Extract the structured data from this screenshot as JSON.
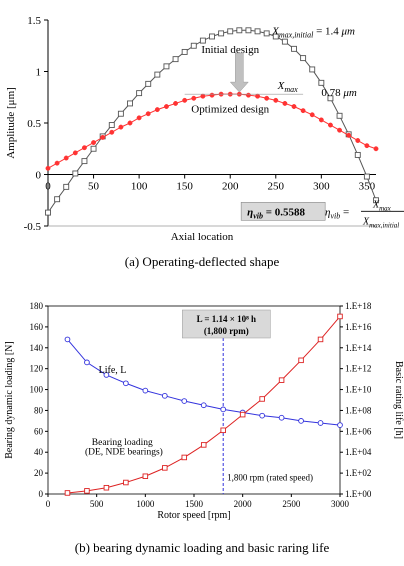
{
  "chart_data": [
    {
      "type": "line",
      "xlabel": "Axial location",
      "ylabel": "Amplitude [μm]",
      "xlim": [
        0,
        360
      ],
      "ylim": [
        -0.5,
        1.5
      ],
      "xticks": [
        "0",
        "50",
        "100",
        "150",
        "200",
        "250",
        "300",
        "350"
      ],
      "yticks": [
        "-0.5",
        "0",
        "0.5",
        "1",
        "1.5"
      ],
      "series": [
        {
          "name": "Initial design",
          "color": "#555555",
          "marker": "square",
          "x": [
            0,
            10,
            20,
            30,
            40,
            50,
            60,
            70,
            80,
            90,
            100,
            110,
            120,
            130,
            140,
            150,
            160,
            170,
            180,
            190,
            200,
            210,
            220,
            230,
            240,
            250,
            260,
            270,
            280,
            290,
            300,
            310,
            320,
            330,
            340,
            350,
            360
          ],
          "y": [
            -0.37,
            -0.24,
            -0.12,
            0.01,
            0.13,
            0.25,
            0.37,
            0.48,
            0.59,
            0.69,
            0.79,
            0.88,
            0.97,
            1.05,
            1.12,
            1.19,
            1.25,
            1.3,
            1.34,
            1.37,
            1.39,
            1.4,
            1.4,
            1.39,
            1.37,
            1.34,
            1.29,
            1.22,
            1.13,
            1.02,
            0.89,
            0.74,
            0.57,
            0.39,
            0.19,
            -0.02,
            -0.25
          ]
        },
        {
          "name": "Optimized design",
          "color": "#ff3333",
          "marker": "circle",
          "x": [
            0,
            10,
            20,
            30,
            40,
            50,
            60,
            70,
            80,
            90,
            100,
            110,
            120,
            130,
            140,
            150,
            160,
            170,
            180,
            190,
            200,
            210,
            220,
            230,
            240,
            250,
            260,
            270,
            280,
            290,
            300,
            310,
            320,
            330,
            340,
            350,
            360
          ],
          "y": [
            0.06,
            0.11,
            0.16,
            0.21,
            0.26,
            0.31,
            0.36,
            0.41,
            0.46,
            0.5,
            0.55,
            0.59,
            0.63,
            0.66,
            0.69,
            0.72,
            0.74,
            0.76,
            0.77,
            0.78,
            0.78,
            0.78,
            0.77,
            0.76,
            0.74,
            0.72,
            0.69,
            0.66,
            0.62,
            0.58,
            0.53,
            0.48,
            0.43,
            0.38,
            0.33,
            0.28,
            0.25
          ]
        }
      ],
      "annotations": {
        "xmax_initial": "X_max,initial = 1.4 μm",
        "initial_design": "Initial design",
        "xmax": "X_max",
        "xmax_value": "0.78 μm",
        "optimized_design": "Optimized design",
        "eta_value": "η_vib = 0.5588",
        "eta_formula_lhs": "η_vib =",
        "eta_formula_num": "X_max",
        "eta_formula_den": "X_max,initial"
      },
      "caption": "(a)  Operating-deflected shape"
    },
    {
      "type": "line",
      "xlabel": "Rotor speed [rpm]",
      "ylabel": "Bearing dynamic loading [N]",
      "y2label": "Basic rating life [h]",
      "xlim": [
        0,
        3000
      ],
      "ylim": [
        0,
        180
      ],
      "y2lim_exp": [
        0,
        18
      ],
      "xticks": [
        "0",
        "500",
        "1000",
        "1500",
        "2000",
        "2500",
        "3000"
      ],
      "yticks": [
        "0",
        "20",
        "40",
        "60",
        "80",
        "100",
        "120",
        "140",
        "160",
        "180"
      ],
      "y2ticks": [
        "1.E+00",
        "1.E+02",
        "1.E+04",
        "1.E+06",
        "1.E+08",
        "1.E+10",
        "1.E+12",
        "1.E+14",
        "1.E+16",
        "1.E+18"
      ],
      "series": [
        {
          "name": "Life, L",
          "color": "#3333dd",
          "marker": "circle",
          "axis": "right",
          "x": [
            200,
            400,
            600,
            800,
            1000,
            1200,
            1400,
            1600,
            1800,
            2000,
            2200,
            2400,
            2600,
            2800,
            3000
          ],
          "y_log10": [
            14.8,
            12.6,
            11.4,
            10.6,
            9.9,
            9.4,
            8.9,
            8.5,
            8.1,
            7.8,
            7.5,
            7.3,
            7.0,
            6.8,
            6.6
          ]
        },
        {
          "name": "Bearing loading (DE, NDE bearings)",
          "color": "#dd2222",
          "marker": "square",
          "axis": "left",
          "x": [
            200,
            400,
            600,
            800,
            1000,
            1200,
            1400,
            1600,
            1800,
            2000,
            2200,
            2400,
            2600,
            2800,
            3000
          ],
          "y": [
            1,
            3,
            6,
            11,
            17,
            25,
            35,
            47,
            61,
            76,
            91,
            109,
            128,
            148,
            170
          ]
        }
      ],
      "annotations": {
        "life_label": "Life, L",
        "loading_label_1": "Bearing loading",
        "loading_label_2": "(DE, NDE bearings)",
        "rated_label": "1,800 rpm (rated speed)",
        "box_line1": "L = 1.14 × 10⁸ h",
        "box_line2": "(1,800 rpm)",
        "rated_x": 1800
      },
      "caption": "(b)  bearing dynamic loading and basic raring life"
    }
  ]
}
